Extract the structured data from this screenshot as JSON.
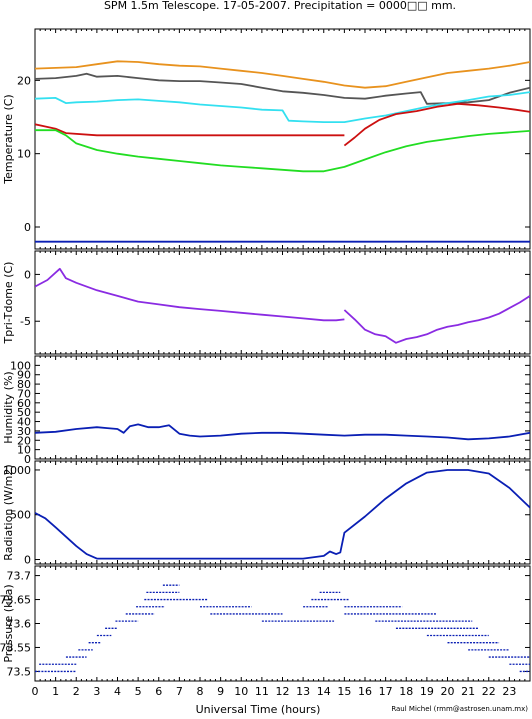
{
  "title": "SPM 1.5m Telescope. 17-05-2007. Precipitation = 0000□□ mm.",
  "credit": "Raul Michel (rmm@astrosen.unam.mx)",
  "colors": {
    "orange": "#e8921e",
    "darkgray": "#555555",
    "cyan": "#33e0f0",
    "red": "#cc1010",
    "green": "#22dd22",
    "blue": "#0a1fb4",
    "purple": "#8a2be2"
  },
  "chart_data": [
    {
      "type": "line",
      "ylabel": "Temperature (C)",
      "xlim": [
        0,
        24
      ],
      "ylim": [
        -3,
        27
      ],
      "yticks": [
        0,
        10,
        20
      ],
      "series": [
        {
          "color": "orange",
          "x": [
            0,
            1,
            2,
            3,
            4,
            5,
            6,
            7,
            8,
            9,
            10,
            11,
            12,
            13,
            14,
            15,
            16,
            17,
            18,
            19,
            20,
            21,
            22,
            23,
            24
          ],
          "y": [
            21.6,
            21.7,
            21.8,
            22.2,
            22.6,
            22.5,
            22.2,
            22.0,
            21.9,
            21.6,
            21.3,
            21.0,
            20.6,
            20.2,
            19.8,
            19.3,
            19.0,
            19.2,
            19.8,
            20.4,
            21.0,
            21.3,
            21.6,
            22.0,
            22.5
          ]
        },
        {
          "color": "darkgray",
          "x": [
            0,
            1,
            2,
            2.5,
            3,
            4,
            5,
            6,
            7,
            8,
            9,
            10,
            11,
            12,
            13,
            14,
            15,
            16,
            17,
            18,
            18.7,
            19,
            20,
            21,
            22,
            23,
            24
          ],
          "y": [
            20.2,
            20.3,
            20.6,
            20.9,
            20.5,
            20.6,
            20.3,
            20.0,
            19.9,
            19.9,
            19.7,
            19.5,
            19.0,
            18.5,
            18.3,
            18.0,
            17.6,
            17.5,
            17.9,
            18.2,
            18.4,
            16.8,
            16.9,
            17.0,
            17.3,
            18.3,
            19.0
          ]
        },
        {
          "color": "cyan",
          "x": [
            0,
            1,
            1.5,
            2,
            3,
            4,
            5,
            6,
            7,
            8,
            9,
            10,
            11,
            12,
            12.3,
            13,
            14,
            15,
            16,
            17,
            18,
            19,
            20,
            21,
            22,
            23,
            24
          ],
          "y": [
            17.5,
            17.6,
            16.9,
            17.0,
            17.1,
            17.3,
            17.4,
            17.2,
            17.0,
            16.7,
            16.5,
            16.3,
            16.0,
            15.9,
            14.5,
            14.4,
            14.3,
            14.3,
            14.8,
            15.2,
            15.8,
            16.4,
            16.9,
            17.3,
            17.8,
            18.0,
            18.4
          ]
        },
        {
          "color": "red",
          "x": [
            0,
            0.5,
            1,
            1.5,
            3,
            6,
            10,
            13,
            15
          ],
          "y": [
            14.0,
            13.7,
            13.4,
            12.8,
            12.5,
            12.5,
            12.5,
            12.5,
            12.5
          ]
        },
        {
          "color": "red",
          "x": [
            15,
            15.5,
            16,
            16.7,
            17.5,
            18.5,
            19.5,
            20.5,
            21.5,
            22.5,
            23.3,
            24
          ],
          "y": [
            11.1,
            12.2,
            13.4,
            14.6,
            15.4,
            15.8,
            16.4,
            16.8,
            16.6,
            16.3,
            16.0,
            15.7
          ]
        },
        {
          "color": "green",
          "x": [
            0,
            1,
            1.5,
            2,
            3,
            4,
            5,
            6,
            7,
            8,
            9,
            10,
            11,
            12,
            13,
            14,
            15,
            16,
            17,
            18,
            19,
            20,
            21,
            22,
            23,
            24
          ],
          "y": [
            13.2,
            13.2,
            12.5,
            11.4,
            10.5,
            10.0,
            9.6,
            9.3,
            9.0,
            8.7,
            8.4,
            8.2,
            8.0,
            7.8,
            7.6,
            7.6,
            8.2,
            9.2,
            10.2,
            11.0,
            11.6,
            12.0,
            12.4,
            12.7,
            12.9,
            13.1
          ]
        },
        {
          "color": "blue",
          "x": [
            0,
            24
          ],
          "y": [
            -2.0,
            -2.0
          ]
        }
      ]
    },
    {
      "type": "line",
      "ylabel": "Tpri-Tdome (C)",
      "xlim": [
        0,
        24
      ],
      "ylim": [
        -8.5,
        2.5
      ],
      "yticks": [
        -5,
        0
      ],
      "series": [
        {
          "color": "purple",
          "x": [
            0,
            0.6,
            1.2,
            1.5,
            2,
            3,
            4,
            5,
            6,
            7,
            8,
            9,
            10,
            11,
            12,
            13,
            14,
            14.6,
            15
          ],
          "y": [
            -1.3,
            -0.6,
            0.6,
            -0.4,
            -0.9,
            -1.7,
            -2.3,
            -2.9,
            -3.2,
            -3.5,
            -3.7,
            -3.9,
            -4.1,
            -4.3,
            -4.5,
            -4.7,
            -4.9,
            -4.9,
            -4.8
          ]
        },
        {
          "color": "purple",
          "x": [
            15,
            15.5,
            16,
            16.5,
            17,
            17.5,
            18,
            18.5,
            19,
            19.5,
            20,
            20.5,
            21,
            21.5,
            22,
            22.5,
            23,
            23.5,
            24
          ],
          "y": [
            -3.8,
            -4.8,
            -5.9,
            -6.4,
            -6.6,
            -7.3,
            -6.9,
            -6.7,
            -6.4,
            -5.9,
            -5.6,
            -5.4,
            -5.1,
            -4.9,
            -4.6,
            -4.2,
            -3.6,
            -3.0,
            -2.3
          ]
        }
      ]
    },
    {
      "type": "line",
      "ylabel": "Humidity (%)",
      "xlim": [
        0,
        24
      ],
      "ylim": [
        0,
        110
      ],
      "yticks": [
        0,
        10,
        20,
        30,
        40,
        50,
        60,
        70,
        80,
        90,
        100
      ],
      "series": [
        {
          "color": "blue",
          "x": [
            0,
            1,
            2,
            3,
            3.5,
            4,
            4.3,
            4.6,
            5,
            5.5,
            6,
            6.5,
            7,
            7.5,
            8,
            9,
            10,
            11,
            12,
            13,
            14,
            15,
            16,
            17,
            18,
            19,
            20,
            21,
            22,
            23,
            24
          ],
          "y": [
            28,
            29,
            32,
            34,
            33,
            32,
            28,
            35,
            37,
            34,
            34,
            36,
            27,
            25,
            24,
            25,
            27,
            28,
            28,
            27,
            26,
            25,
            26,
            26,
            25,
            24,
            23,
            21,
            22,
            24,
            28
          ]
        }
      ]
    },
    {
      "type": "line",
      "ylabel": "Radiation (W/m2)",
      "xlim": [
        0,
        24
      ],
      "ylim": [
        -50,
        1100
      ],
      "yticks": [
        0,
        500,
        1000
      ],
      "series": [
        {
          "color": "blue",
          "x": [
            0,
            0.5,
            1,
            2,
            2.5,
            3,
            5,
            7,
            9,
            11,
            13,
            14,
            14.3,
            14.6,
            14.8,
            15,
            16,
            17,
            18,
            19,
            20,
            21,
            22,
            23,
            24
          ],
          "y": [
            520,
            460,
            360,
            150,
            60,
            10,
            10,
            10,
            10,
            10,
            10,
            40,
            90,
            60,
            80,
            300,
            480,
            680,
            850,
            970,
            1000,
            1000,
            960,
            800,
            580
          ]
        }
      ]
    },
    {
      "type": "scatter",
      "ylabel": "Pressure (kPa)",
      "xlim": [
        0,
        24
      ],
      "ylim": [
        73.48,
        73.72
      ],
      "yticks": [
        73.5,
        73.55,
        73.6,
        73.65,
        73.7
      ],
      "yticklabels": [
        "73.5",
        "73.55",
        "73.6",
        "73.65",
        "73.7"
      ],
      "series": [
        {
          "color": "blue",
          "segments": [
            {
              "x0": 0,
              "x1": 2.0,
              "y": 73.5
            },
            {
              "x0": 0.2,
              "x1": 2.0,
              "y": 73.515
            },
            {
              "x0": 1.5,
              "x1": 2.5,
              "y": 73.53
            },
            {
              "x0": 2.1,
              "x1": 2.8,
              "y": 73.545
            },
            {
              "x0": 2.6,
              "x1": 3.2,
              "y": 73.56
            },
            {
              "x0": 3.0,
              "x1": 3.7,
              "y": 73.575
            },
            {
              "x0": 3.4,
              "x1": 4.0,
              "y": 73.59
            },
            {
              "x0": 3.9,
              "x1": 5.0,
              "y": 73.605
            },
            {
              "x0": 4.4,
              "x1": 5.8,
              "y": 73.62
            },
            {
              "x0": 4.9,
              "x1": 6.3,
              "y": 73.635
            },
            {
              "x0": 5.3,
              "x1": 8.4,
              "y": 73.65
            },
            {
              "x0": 5.4,
              "x1": 7.0,
              "y": 73.665
            },
            {
              "x0": 6.2,
              "x1": 7.0,
              "y": 73.68
            },
            {
              "x0": 8.0,
              "x1": 10.5,
              "y": 73.635
            },
            {
              "x0": 8.5,
              "x1": 12.0,
              "y": 73.62
            },
            {
              "x0": 11.0,
              "x1": 14.5,
              "y": 73.605
            },
            {
              "x0": 13.0,
              "x1": 14.2,
              "y": 73.635
            },
            {
              "x0": 13.4,
              "x1": 15.2,
              "y": 73.65
            },
            {
              "x0": 13.8,
              "x1": 14.8,
              "y": 73.665
            },
            {
              "x0": 15.0,
              "x1": 17.8,
              "y": 73.635
            },
            {
              "x0": 15.0,
              "x1": 19.5,
              "y": 73.62
            },
            {
              "x0": 16.5,
              "x1": 21.2,
              "y": 73.605
            },
            {
              "x0": 17.5,
              "x1": 21.5,
              "y": 73.59
            },
            {
              "x0": 19.0,
              "x1": 22.0,
              "y": 73.575
            },
            {
              "x0": 20.0,
              "x1": 22.5,
              "y": 73.56
            },
            {
              "x0": 21.0,
              "x1": 23.0,
              "y": 73.545
            },
            {
              "x0": 22.0,
              "x1": 24.0,
              "y": 73.53
            },
            {
              "x0": 23.0,
              "x1": 24.0,
              "y": 73.515
            },
            {
              "x0": 23.5,
              "x1": 24.0,
              "y": 73.5
            }
          ]
        }
      ]
    }
  ],
  "x_axis": {
    "label": "Universal Time (hours)",
    "ticks": [
      0,
      1,
      2,
      3,
      4,
      5,
      6,
      7,
      8,
      9,
      10,
      11,
      12,
      13,
      14,
      15,
      16,
      17,
      18,
      19,
      20,
      21,
      22,
      23
    ]
  }
}
